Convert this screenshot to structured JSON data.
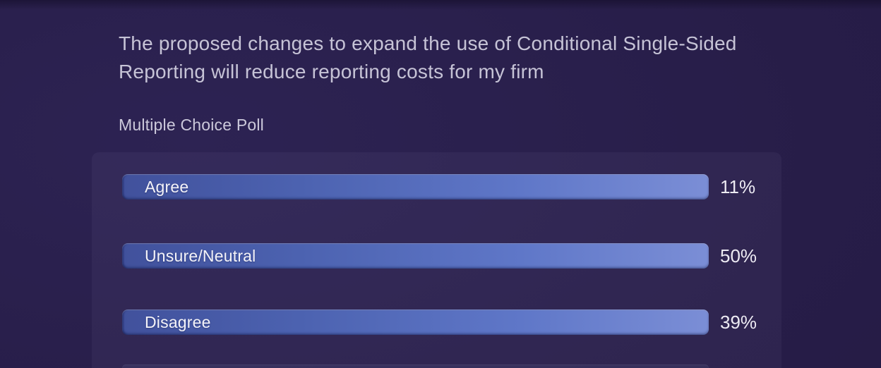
{
  "question": {
    "title": "The proposed changes to expand the use of Conditional Single-Sided Reporting will reduce reporting costs for my firm",
    "poll_type_label": "Multiple Choice Poll"
  },
  "results": [
    {
      "label": "Agree",
      "percent": "11%"
    },
    {
      "label": "Unsure/Neutral",
      "percent": "50%"
    },
    {
      "label": "Disagree",
      "percent": "39%"
    }
  ],
  "chart_data": {
    "type": "bar",
    "orientation": "horizontal",
    "title": "The proposed changes to expand the use of Conditional Single-Sided Reporting will reduce reporting costs for my firm",
    "subtitle": "Multiple Choice Poll",
    "categories": [
      "Agree",
      "Unsure/Neutral",
      "Disagree"
    ],
    "values": [
      11,
      50,
      39
    ],
    "unit": "%",
    "value_labels": [
      "11%",
      "50%",
      "39%"
    ],
    "xlabel": "",
    "ylabel": "",
    "legend": false,
    "grid": false,
    "layout_note": "all option bars are drawn at equal full width; percentages shown as text labels right of each bar"
  },
  "colors": {
    "page_background": "#271d48",
    "panel_background": "#2d2452",
    "bar_gradient_left": "#41519c",
    "bar_gradient_right": "#7b8ed6",
    "title_text": "#c6c3d6",
    "option_label_text": "#f4f3f8",
    "percent_text": "#edebf3"
  }
}
